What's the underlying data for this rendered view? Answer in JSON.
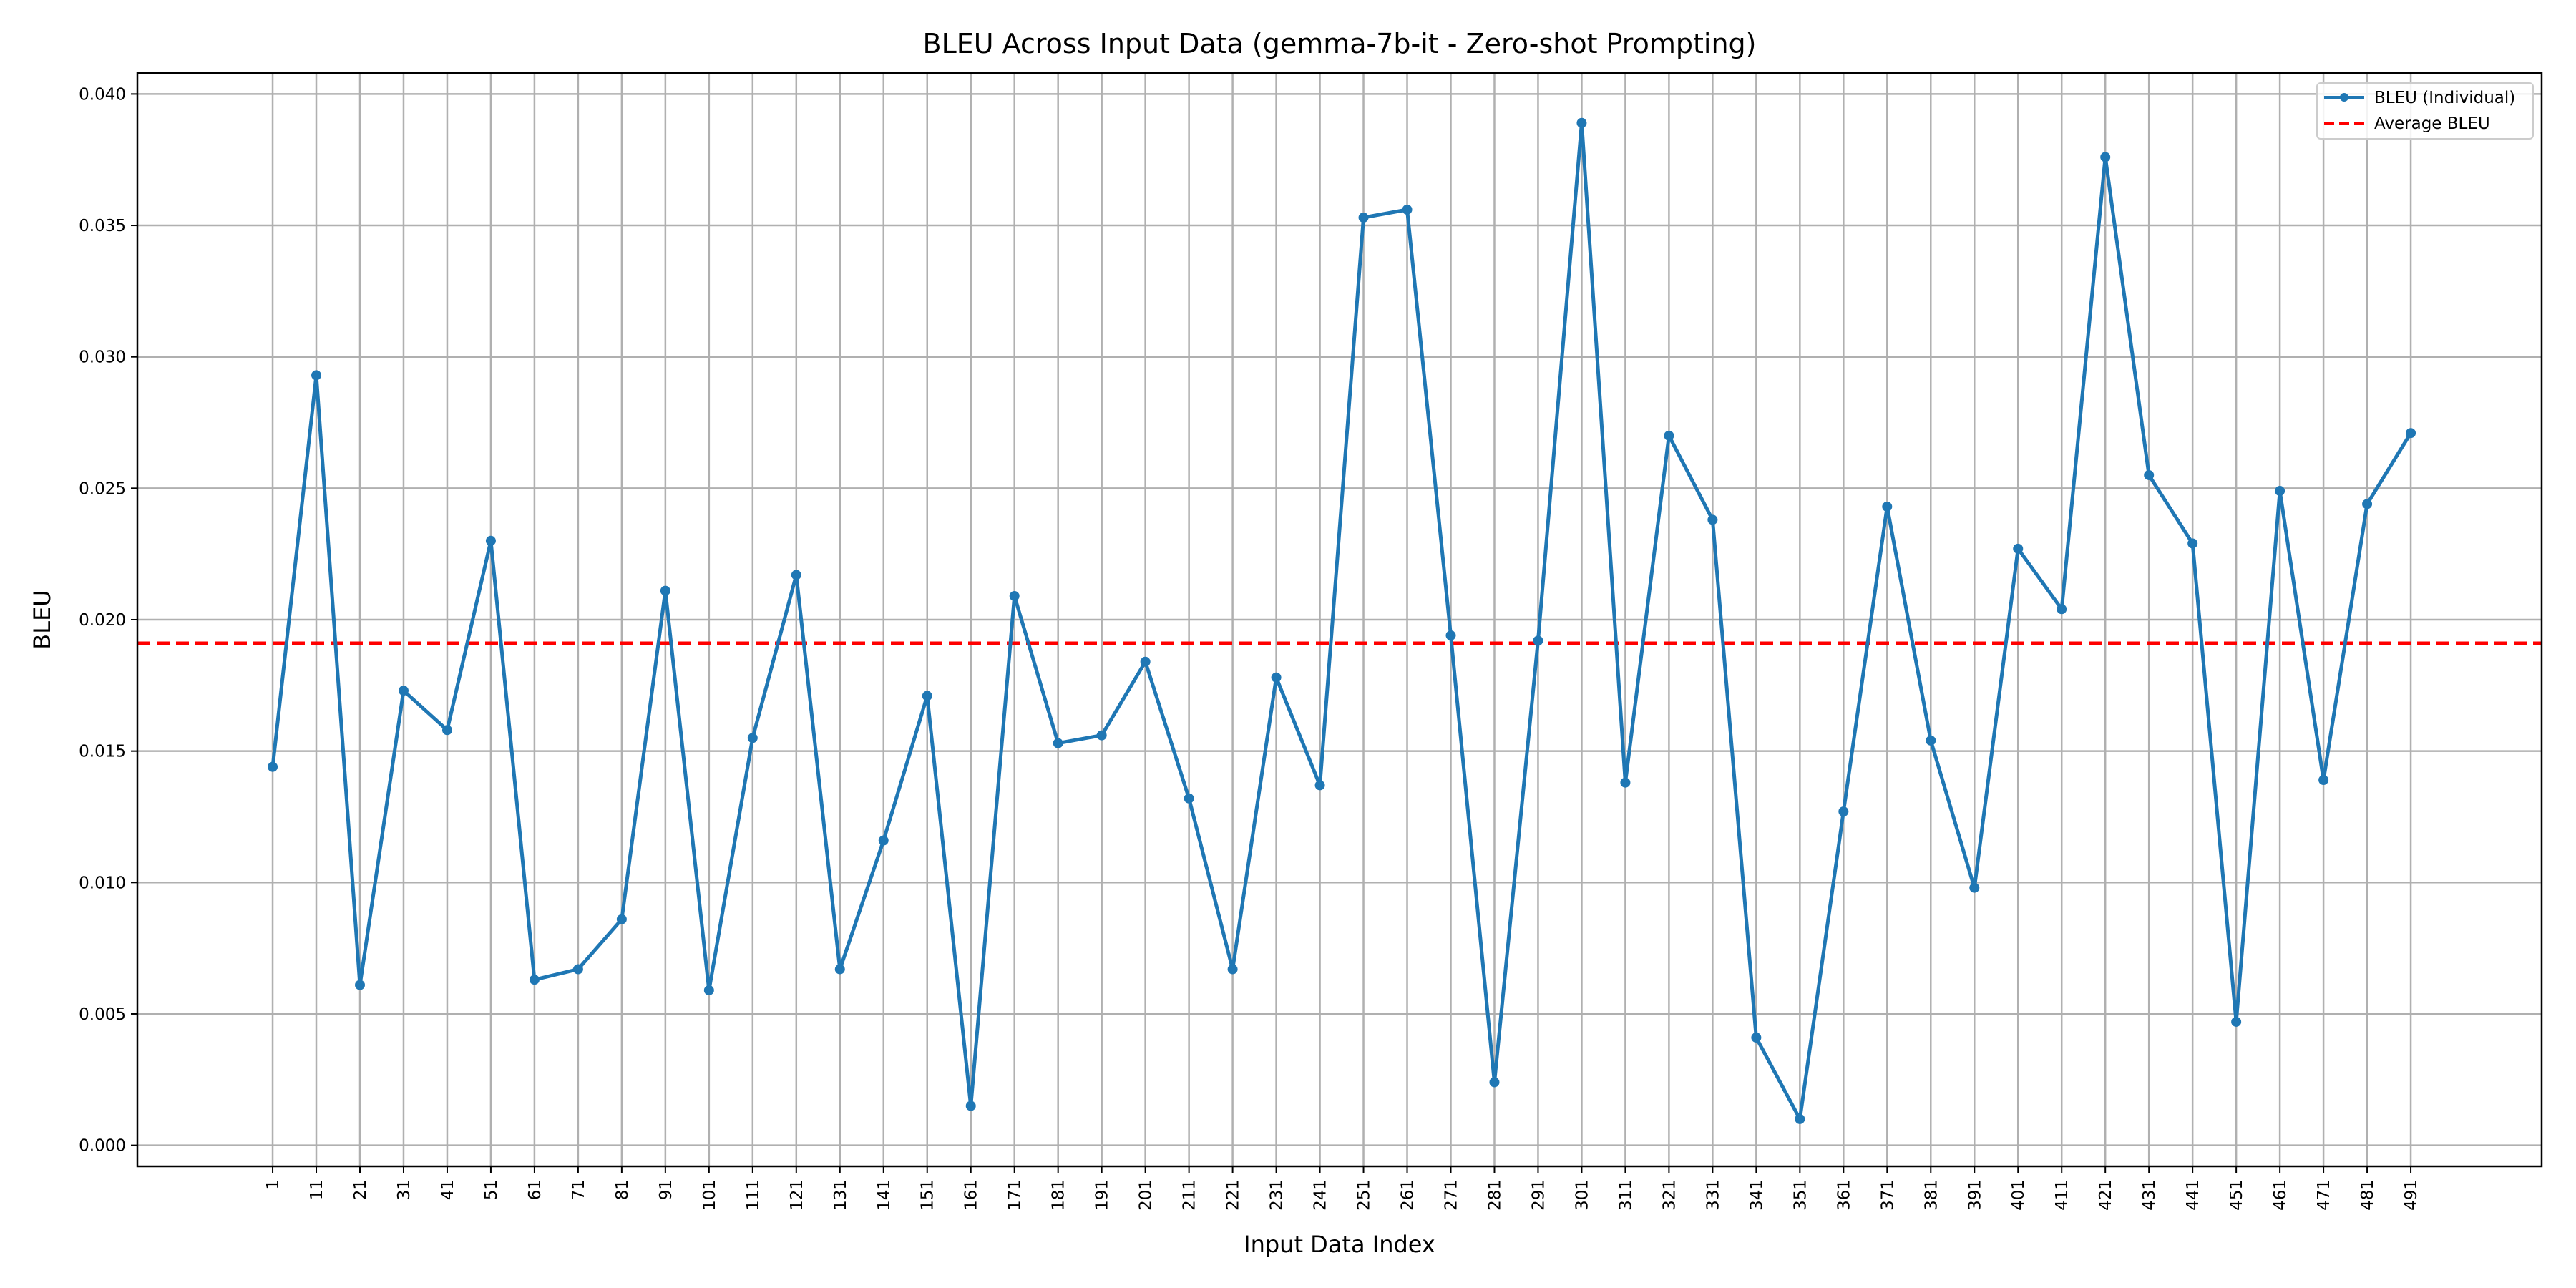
{
  "chart_data": {
    "type": "line",
    "title": "BLEU Across Input Data (gemma-7b-it - Zero-shot Prompting)",
    "xlabel": "Input Data Index",
    "ylabel": "BLEU",
    "ylim": [
      -0.0008,
      0.0408
    ],
    "xlim": [
      -30,
      521
    ],
    "yticks": [
      0.0,
      0.005,
      0.01,
      0.015,
      0.02,
      0.025,
      0.03,
      0.035,
      0.04
    ],
    "ytick_labels": [
      "0.000",
      "0.005",
      "0.010",
      "0.015",
      "0.020",
      "0.025",
      "0.030",
      "0.035",
      "0.040"
    ],
    "x": [
      1,
      11,
      21,
      31,
      41,
      51,
      61,
      71,
      81,
      91,
      101,
      111,
      121,
      131,
      141,
      151,
      161,
      171,
      181,
      191,
      201,
      211,
      221,
      231,
      241,
      251,
      261,
      271,
      281,
      291,
      301,
      311,
      321,
      331,
      341,
      351,
      361,
      371,
      381,
      391,
      401,
      411,
      421,
      431,
      441,
      451,
      461,
      471,
      481,
      491
    ],
    "series": [
      {
        "name": "BLEU (Individual)",
        "color": "#1f77b4",
        "style": "solid-with-markers",
        "values": [
          0.0144,
          0.0293,
          0.0061,
          0.0173,
          0.0158,
          0.023,
          0.0063,
          0.0067,
          0.0086,
          0.0211,
          0.0059,
          0.0155,
          0.0217,
          0.0067,
          0.0116,
          0.0171,
          0.0015,
          0.0209,
          0.0153,
          0.0156,
          0.0184,
          0.0132,
          0.0067,
          0.0178,
          0.0137,
          0.0353,
          0.0356,
          0.0194,
          0.0024,
          0.0192,
          0.0389,
          0.0138,
          0.027,
          0.0238,
          0.0041,
          0.001,
          0.0127,
          0.0243,
          0.0154,
          0.0098,
          0.0227,
          0.0204,
          0.0376,
          0.0255,
          0.0229,
          0.0047,
          0.0249,
          0.0139,
          0.0244,
          0.0271
        ]
      },
      {
        "name": "Average BLEU",
        "color": "#ff0000",
        "style": "dashed",
        "value": 0.0191
      }
    ],
    "grid": true,
    "legend_position": "top-right"
  }
}
